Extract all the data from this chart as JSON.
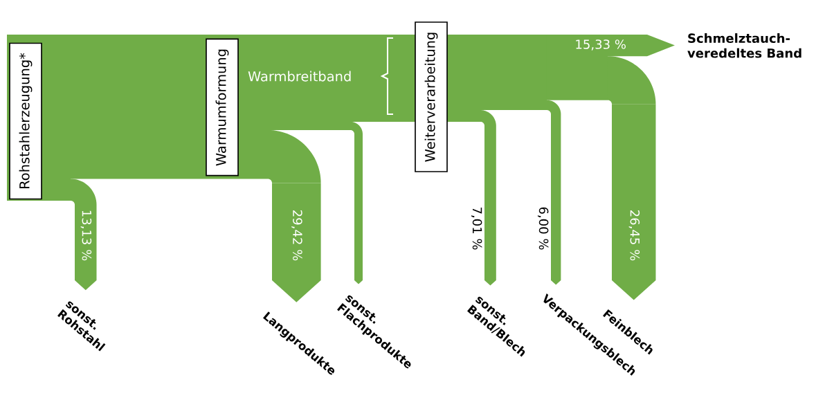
{
  "chart_data": {
    "type": "other",
    "categories": [
      "sonst.\nRohstahl",
      "Langprodukte",
      "sonst.\nFlachprodukte",
      "sonst.\nBand/Blech",
      "Verpackungsblech",
      "Feinblech",
      "Schmelztauch-\nveredeltes Band"
    ],
    "values": [
      13.13,
      29.42,
      null,
      7.01,
      6.0,
      26.45,
      15.33
    ],
    "value_labels": [
      "13,13 %",
      "29,42 %",
      null,
      "7,01 %",
      "6,00 %",
      "26,45 %",
      "15,33 %"
    ],
    "color": "#70ad47",
    "annotations": [
      "Rohstahlerzeugung*",
      "Warmumformung",
      "Weiterverarbeitung",
      "Warmbreitband"
    ]
  }
}
